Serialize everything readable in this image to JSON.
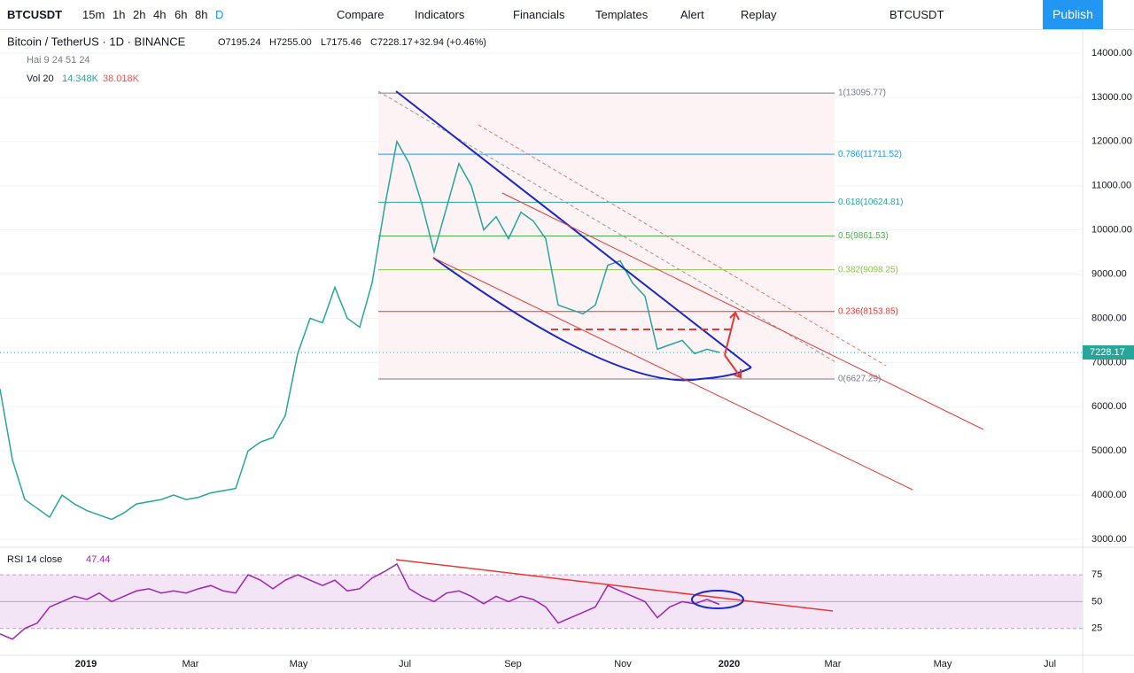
{
  "toolbar": {
    "symbol": "BTCUSDT",
    "intervals": [
      "15m",
      "1h",
      "2h",
      "4h",
      "6h",
      "8h",
      "D"
    ],
    "buttons": [
      "Compare",
      "Indicators",
      "Financials",
      "Templates",
      "Alert",
      "Replay"
    ],
    "symbol_search": "BTCUSDT",
    "publish": "Publish"
  },
  "legend": {
    "title": "Bitcoin / TetherUS · 1D · BINANCE",
    "ohlc": [
      "O7195.24",
      "H7255.00",
      "L7175.46",
      "C7228.17",
      "+32.94 (+0.46%)"
    ],
    "indicator": "Hai 9 24 51 24",
    "volume_name": "Vol 20",
    "volume_values": [
      "14.348K",
      "38.018K"
    ]
  },
  "time_labels": [
    "2019",
    "Mar",
    "May",
    "Jul",
    "Sep",
    "Nov",
    "2020",
    "Mar",
    "May",
    "Jul"
  ],
  "chart_data": [
    {
      "type": "line",
      "color": "#26a69a",
      "values": [
        6400,
        4800,
        3900,
        3700,
        3500,
        4000,
        3800,
        3650,
        3550,
        3450,
        3600,
        3800,
        3850,
        3900,
        4000,
        3900,
        3950,
        4050,
        4100,
        4150,
        5000,
        5200,
        5300,
        5800,
        7200,
        8000,
        7900,
        8700,
        8000,
        7800,
        8800,
        10500,
        12000,
        11500,
        10600,
        9500,
        10500,
        11500,
        11000,
        10000,
        10300,
        9800,
        10400,
        10200,
        9800,
        8300,
        8200,
        8100,
        8300,
        9200,
        9300,
        8800,
        8500,
        7300,
        7400,
        7500,
        7200,
        7300,
        7228.17
      ],
      "ylim": [
        2840,
        14540
      ],
      "yticks": [
        {
          "value": 14000,
          "label": "14000.00"
        },
        {
          "value": 13000,
          "label": "13000.00"
        },
        {
          "value": 12000,
          "label": "12000.00"
        },
        {
          "value": 11000,
          "label": "11000.00"
        },
        {
          "value": 10000,
          "label": "10000.00"
        },
        {
          "value": 9000,
          "label": "9000.00"
        },
        {
          "value": 8000,
          "label": "8000.00"
        },
        {
          "value": 7000,
          "label": "7000.00"
        },
        {
          "value": 6000,
          "label": "6000.00"
        },
        {
          "value": 5000,
          "label": "5000.00"
        },
        {
          "value": 4000,
          "label": "4000.00"
        },
        {
          "value": 3000,
          "label": "3000.00"
        }
      ],
      "last_price": {
        "value": 7228.17,
        "label": "7228.17"
      },
      "fib_levels": [
        {
          "value": 13095.77,
          "label": "1(13095.77)",
          "color": "#787b86"
        },
        {
          "value": 11711.52,
          "label": "0.786(11711.52)",
          "color": "#2196f3"
        },
        {
          "value": 10624.81,
          "label": "0.618(10624.81)",
          "color": "#26a69a"
        },
        {
          "value": 9861.53,
          "label": "0.5(9861.53)",
          "color": "#4caf50"
        },
        {
          "value": 9098.25,
          "label": "0.382(9098.25)",
          "color": "#8bc34a"
        },
        {
          "value": 8153.85,
          "label": "0.236(8153.85)",
          "color": "#e53935"
        },
        {
          "value": 6627.29,
          "label": "0(6627.29)",
          "color": "#787b86"
        }
      ]
    },
    {
      "type": "line",
      "title": "RSI 14 close",
      "value_label": "47.44",
      "color": "#9c27b0",
      "values": [
        20,
        15,
        25,
        30,
        45,
        50,
        55,
        52,
        58,
        50,
        55,
        60,
        62,
        58,
        60,
        58,
        62,
        65,
        60,
        58,
        75,
        70,
        62,
        70,
        75,
        70,
        65,
        70,
        60,
        62,
        72,
        78,
        85,
        62,
        55,
        50,
        58,
        60,
        55,
        48,
        55,
        50,
        55,
        52,
        45,
        30,
        35,
        40,
        45,
        65,
        60,
        55,
        50,
        35,
        45,
        50,
        48,
        52,
        47.44
      ],
      "ylim": [
        0,
        99
      ],
      "yticks": [
        75,
        50,
        25
      ]
    }
  ]
}
